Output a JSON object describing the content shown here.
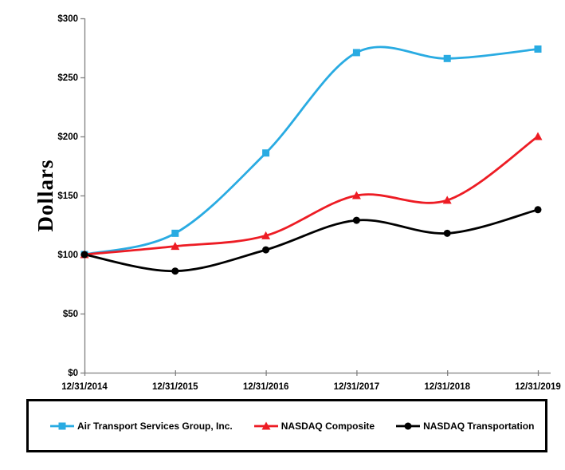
{
  "chart_data": {
    "type": "line",
    "title": "",
    "ylabel": "Dollars",
    "xlabel": "",
    "categories": [
      "12/31/2014",
      "12/31/2015",
      "12/31/2016",
      "12/31/2017",
      "12/31/2018",
      "12/31/2019"
    ],
    "series": [
      {
        "name": "Air Transport Services Group, Inc.",
        "color": "#29abe2",
        "marker": "square",
        "values": [
          100,
          118,
          186,
          271,
          266,
          274
        ]
      },
      {
        "name": "NASDAQ Composite",
        "color": "#ed1c24",
        "marker": "triangle",
        "values": [
          100,
          107,
          116,
          150,
          146,
          200
        ]
      },
      {
        "name": "NASDAQ Transportation",
        "color": "#000000",
        "marker": "circle",
        "values": [
          100,
          86,
          104,
          129,
          118,
          138
        ]
      }
    ],
    "y_ticks": [
      "$0",
      "$50",
      "$100",
      "$150",
      "$200",
      "$250",
      "$300"
    ],
    "ylim": [
      0,
      300
    ],
    "y_tick_step": 50,
    "grid": false,
    "smooth_lines": true,
    "legend_position": "bottom",
    "axis_color": "#808080",
    "text_color": "#000000"
  }
}
